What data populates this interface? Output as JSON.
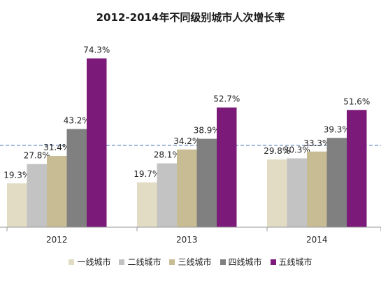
{
  "chart_data": {
    "type": "bar",
    "title": "2012-2014年不同级别城市人次增长率",
    "categories": [
      "2012",
      "2013",
      "2014"
    ],
    "series": [
      {
        "name": "一线城市",
        "color": "#e2dcc4",
        "values": [
          19.3,
          19.7,
          29.8
        ],
        "labels": [
          "19.3%",
          "19.7%",
          "29.8%"
        ]
      },
      {
        "name": "二线城市",
        "color": "#c3c3c3",
        "values": [
          27.8,
          28.1,
          30.3
        ],
        "labels": [
          "27.8%",
          "28.1%",
          "30.3%"
        ]
      },
      {
        "name": "三线城市",
        "color": "#c8bc94",
        "values": [
          31.4,
          34.2,
          33.3
        ],
        "labels": [
          "31.4%",
          "34.2%",
          "33.3%"
        ]
      },
      {
        "name": "四线城市",
        "color": "#808080",
        "values": [
          43.2,
          38.9,
          39.3
        ],
        "labels": [
          "43.2%",
          "38.9%",
          "39.3%"
        ]
      },
      {
        "name": "五线城市",
        "color": "#7b1a78",
        "values": [
          74.3,
          52.7,
          51.6
        ],
        "labels": [
          "74.3%",
          "52.7%",
          "51.6%"
        ]
      }
    ],
    "xlabel": "",
    "ylabel": "",
    "ylim": [
      0,
      80
    ],
    "grid": false,
    "reference_line": {
      "value": 36,
      "style": "dashed",
      "color": "#4a74b8"
    },
    "legend_position": "bottom"
  }
}
